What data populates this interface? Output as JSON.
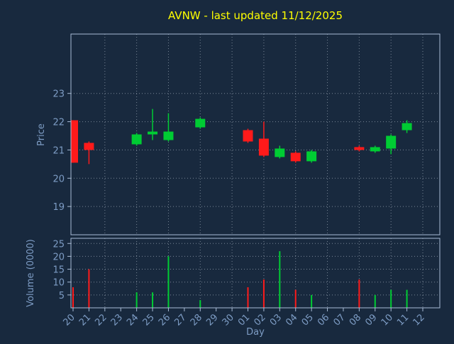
{
  "colors": {
    "background": "#18293e",
    "frame": "#a9bcd6",
    "label": "#7d9cc4",
    "title": "#ffff00",
    "up": "#00cc33",
    "down": "#ff1a1a",
    "grid": "#c9d3df"
  },
  "chart_data": {
    "type": "candlestick",
    "title": "AVNW - last updated 11/12/2025",
    "xlabel": "Day",
    "price_axis": {
      "label": "Price",
      "ticks": [
        19,
        20,
        21,
        22,
        23
      ],
      "ylim": [
        18.0,
        25.1
      ]
    },
    "volume_axis": {
      "label": "Volume (0000)",
      "ticks": [
        5,
        10,
        15,
        20,
        25
      ],
      "ylim": [
        0,
        27
      ]
    },
    "days": [
      "20",
      "21",
      "22",
      "23",
      "24",
      "25",
      "26",
      "27",
      "28",
      "29",
      "30",
      "01",
      "02",
      "03",
      "04",
      "05",
      "06",
      "07",
      "08",
      "09",
      "10",
      "11",
      "12"
    ],
    "grid_days": [
      "22",
      "24",
      "26",
      "28",
      "30",
      "02",
      "04",
      "06",
      "08",
      "10",
      "12"
    ],
    "candles": [
      {
        "day": "20",
        "open": 22.05,
        "high": 22.05,
        "low": 20.55,
        "close": 20.55,
        "volume": 8
      },
      {
        "day": "21",
        "open": 21.25,
        "high": 21.3,
        "low": 20.5,
        "close": 21.0,
        "volume": 15
      },
      {
        "day": "24",
        "open": 21.2,
        "high": 21.6,
        "low": 21.15,
        "close": 21.55,
        "volume": 6
      },
      {
        "day": "25",
        "open": 21.55,
        "high": 22.45,
        "low": 21.35,
        "close": 21.65,
        "volume": 6
      },
      {
        "day": "26",
        "open": 21.35,
        "high": 22.3,
        "low": 21.3,
        "close": 21.65,
        "volume": 20
      },
      {
        "day": "28",
        "open": 21.8,
        "high": 22.15,
        "low": 21.75,
        "close": 22.1,
        "volume": 3
      },
      {
        "day": "01",
        "open": 21.7,
        "high": 21.75,
        "low": 21.25,
        "close": 21.3,
        "volume": 8
      },
      {
        "day": "02",
        "open": 21.4,
        "high": 22.0,
        "low": 20.75,
        "close": 20.8,
        "volume": 11
      },
      {
        "day": "03",
        "open": 20.75,
        "high": 21.15,
        "low": 20.7,
        "close": 21.05,
        "volume": 22
      },
      {
        "day": "04",
        "open": 20.9,
        "high": 20.95,
        "low": 20.55,
        "close": 20.6,
        "volume": 7
      },
      {
        "day": "05",
        "open": 20.6,
        "high": 21.0,
        "low": 20.55,
        "close": 20.95,
        "volume": 5
      },
      {
        "day": "08",
        "open": 21.1,
        "high": 21.15,
        "low": 20.95,
        "close": 21.0,
        "volume": 11
      },
      {
        "day": "09",
        "open": 20.95,
        "high": 21.15,
        "low": 20.9,
        "close": 21.1,
        "volume": 5
      },
      {
        "day": "10",
        "open": 21.05,
        "high": 21.55,
        "low": 20.85,
        "close": 21.5,
        "volume": 7
      },
      {
        "day": "11",
        "open": 21.7,
        "high": 22.05,
        "low": 21.6,
        "close": 21.95,
        "volume": 7
      }
    ]
  }
}
